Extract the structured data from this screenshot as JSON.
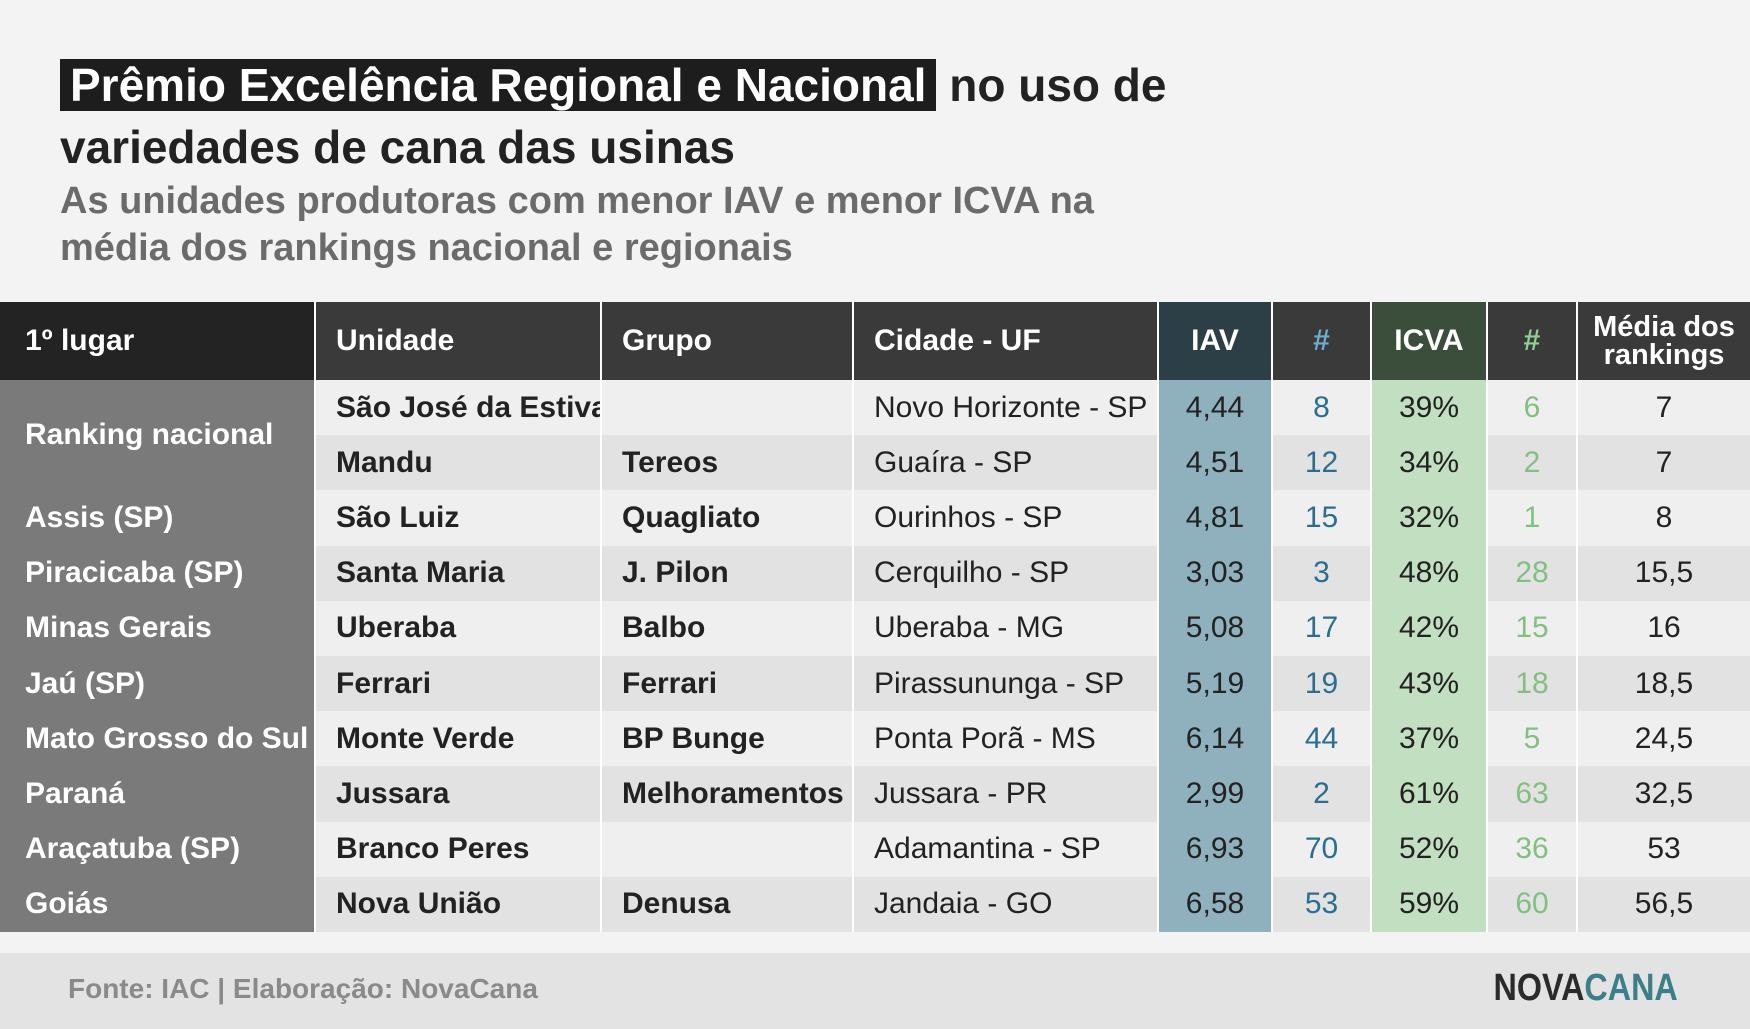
{
  "header": {
    "title_highlight": "Prêmio Excelência Regional e Nacional",
    "title_rest": " no uso de variedades de cana das usinas",
    "subtitle": "As unidades produtoras com menor IAV e menor ICVA na média dos rankings nacional e regionais"
  },
  "chart_data": {
    "type": "table",
    "columns": [
      "1º lugar",
      "Unidade",
      "Grupo",
      "Cidade - UF",
      "IAV",
      "#",
      "ICVA",
      "#",
      "Média dos rankings"
    ],
    "rows": [
      {
        "region": "Ranking nacional",
        "unidade": "São José da Estiva",
        "grupo": "",
        "cidade": "Novo Horizonte - SP",
        "iav": "4,44",
        "iav_rank": "8",
        "icva": "39%",
        "icva_rank": "6",
        "media": "7"
      },
      {
        "region": "",
        "unidade": "Mandu",
        "grupo": "Tereos",
        "cidade": "Guaíra - SP",
        "iav": "4,51",
        "iav_rank": "12",
        "icva": "34%",
        "icva_rank": "2",
        "media": "7"
      },
      {
        "region": "Assis (SP)",
        "unidade": "São Luiz",
        "grupo": "Quagliato",
        "cidade": "Ourinhos - SP",
        "iav": "4,81",
        "iav_rank": "15",
        "icva": "32%",
        "icva_rank": "1",
        "media": "8"
      },
      {
        "region": "Piracicaba (SP)",
        "unidade": "Santa Maria",
        "grupo": "J. Pilon",
        "cidade": "Cerquilho - SP",
        "iav": "3,03",
        "iav_rank": "3",
        "icva": "48%",
        "icva_rank": "28",
        "media": "15,5"
      },
      {
        "region": "Minas Gerais",
        "unidade": "Uberaba",
        "grupo": "Balbo",
        "cidade": "Uberaba - MG",
        "iav": "5,08",
        "iav_rank": "17",
        "icva": "42%",
        "icva_rank": "15",
        "media": "16"
      },
      {
        "region": "Jaú (SP)",
        "unidade": "Ferrari",
        "grupo": "Ferrari",
        "cidade": "Pirassununga - SP",
        "iav": "5,19",
        "iav_rank": "19",
        "icva": "43%",
        "icva_rank": "18",
        "media": "18,5"
      },
      {
        "region": "Mato Grosso do Sul",
        "unidade": "Monte Verde",
        "grupo": "BP Bunge",
        "cidade": "Ponta Porã - MS",
        "iav": "6,14",
        "iav_rank": "44",
        "icva": "37%",
        "icva_rank": "5",
        "media": "24,5"
      },
      {
        "region": "Paraná",
        "unidade": "Jussara",
        "grupo": "Melhoramentos",
        "cidade": "Jussara - PR",
        "iav": "2,99",
        "iav_rank": "2",
        "icva": "61%",
        "icva_rank": "63",
        "media": "32,5"
      },
      {
        "region": "Araçatuba (SP)",
        "unidade": "Branco Peres",
        "grupo": "",
        "cidade": "Adamantina - SP",
        "iav": "6,93",
        "iav_rank": "70",
        "icva": "52%",
        "icva_rank": "36",
        "media": "53"
      },
      {
        "region": "Goiás",
        "unidade": "Nova União",
        "grupo": "Denusa",
        "cidade": "Jandaia - GO",
        "iav": "6,58",
        "iav_rank": "53",
        "icva": "59%",
        "icva_rank": "60",
        "media": "56,5"
      }
    ]
  },
  "headers": {
    "col_lugar": "1º lugar",
    "col_unidade": "Unidade",
    "col_grupo": "Grupo",
    "col_cidade": "Cidade - UF",
    "col_iav": "IAV",
    "col_iav_rank": "#",
    "col_icva": "ICVA",
    "col_icva_rank": "#",
    "col_media_1": "Média dos",
    "col_media_2": "rankings"
  },
  "footer": {
    "source": "Fonte: IAC | Elaboração: NovaCana",
    "logo_part1": "NOVA",
    "logo_part2": "CANA"
  },
  "colors": {
    "iav_column": "#8fb1bd",
    "icva_column": "#c2dfc2",
    "iav_rank_text": "#2a6f8f",
    "icva_rank_text": "#82c082",
    "region_column": "#7a7a7a",
    "header_bg": "#3a3a3a"
  }
}
